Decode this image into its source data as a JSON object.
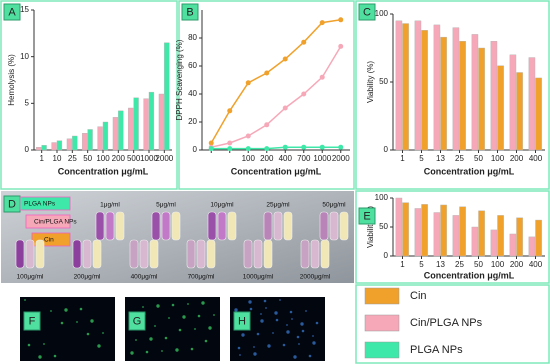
{
  "chart_data": [
    {
      "type": "bar",
      "label": "A",
      "ylabel": "Hemolysis (%)",
      "xlabel": "Concentration μg/mL",
      "categories": [
        "1",
        "10",
        "25",
        "50",
        "100",
        "200",
        "500",
        "1000",
        "2000"
      ],
      "ylim": [
        0,
        15
      ],
      "yticks": [
        0,
        5,
        10,
        15
      ],
      "series": [
        {
          "color": "#f6a8b8",
          "values": [
            0.3,
            0.8,
            1.2,
            1.8,
            2.5,
            3.5,
            4.5,
            5.5,
            6
          ]
        },
        {
          "color": "#3ee8a8",
          "values": [
            0.5,
            1,
            1.5,
            2.2,
            3,
            4.2,
            5.6,
            6.2,
            11.5
          ]
        }
      ]
    },
    {
      "type": "line",
      "label": "B",
      "ylabel": "DPPH Scavenging (%)",
      "xlabel": "Concentration μg/mL",
      "categories": [
        null,
        null,
        "100",
        "200",
        "400",
        "700",
        "1000",
        "2000"
      ],
      "ylim": [
        0,
        100
      ],
      "yticks": [
        0,
        20,
        40,
        60,
        80
      ],
      "series": [
        {
          "name": "Cin",
          "color": "#f0a12c",
          "values": [
            5,
            28,
            48,
            55,
            65,
            77,
            91,
            93
          ]
        },
        {
          "name": "Cin/PLGA NPs",
          "color": "#f6a8b8",
          "values": [
            2,
            5,
            10,
            18,
            30,
            40,
            52,
            74
          ]
        },
        {
          "name": "PLGA NPs",
          "color": "#3ee8a8",
          "values": [
            1,
            1,
            1,
            1,
            2,
            2,
            2,
            2
          ]
        }
      ]
    },
    {
      "type": "bar",
      "label": "C",
      "ylabel": "Viability (%)",
      "xlabel": "Concentration μg/mL",
      "categories": [
        "1",
        "5",
        "13",
        "25",
        "50",
        "100",
        "200",
        "400"
      ],
      "ylim": [
        0,
        100
      ],
      "yticks": [
        0,
        50,
        100
      ],
      "series": [
        {
          "color": "#f6a8b8",
          "values": [
            95,
            95,
            92,
            90,
            85,
            80,
            70,
            68
          ]
        },
        {
          "color": "#f0a12c",
          "values": [
            93,
            88,
            83,
            80,
            75,
            62,
            57,
            53
          ]
        }
      ]
    },
    {
      "type": "bar",
      "label": "E",
      "ylabel": "Viability (%)",
      "xlabel": "Concentration μg/mL",
      "categories": [
        "1",
        "5",
        "13",
        "25",
        "50",
        "100",
        "200",
        "400"
      ],
      "ylim": [
        0,
        100
      ],
      "yticks": [
        0,
        50,
        100
      ],
      "series": [
        {
          "color": "#f6a8b8",
          "values": [
            100,
            82,
            75,
            70,
            50,
            45,
            38,
            33
          ]
        },
        {
          "color": "#f0a12c",
          "values": [
            92,
            89,
            88,
            85,
            78,
            70,
            66,
            62
          ]
        }
      ]
    }
  ],
  "photo": {
    "label": "D",
    "key": [
      "PLGA NPs",
      "Cin/PLGA NPs",
      "Cin"
    ],
    "top_row": [
      "1μg/ml",
      "5μg/ml",
      "10μg/ml",
      "25μg/ml",
      "50μg/ml"
    ],
    "bottom_row": [
      "100μg/ml",
      "200μg/ml",
      "400μg/ml",
      "700μg/ml",
      "1000μg/ml",
      "2000μg/ml"
    ]
  },
  "fluorescence": [
    "F",
    "G",
    "H"
  ]
}
